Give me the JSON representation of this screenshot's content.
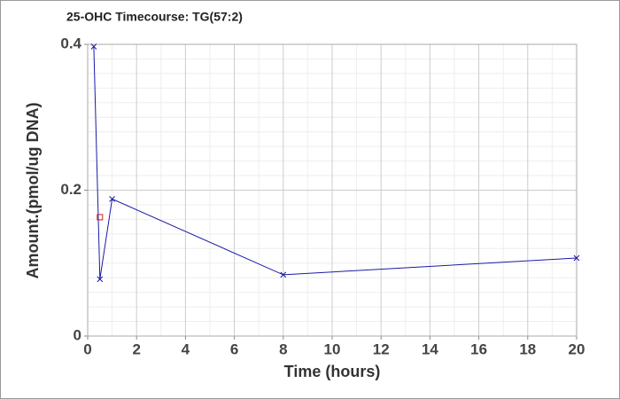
{
  "chart_data": {
    "type": "line",
    "title": "25-OHC Timecourse: TG(57:2)",
    "xlabel": "Time (hours)",
    "ylabel": "Amount.(pmol/ug DNA)",
    "series": [
      {
        "color": "#1a1aa8",
        "marker": "x",
        "x": [
          0.25,
          0.5,
          1,
          8,
          20
        ],
        "values": [
          0.397,
          0.078,
          0.188,
          0.084,
          0.107
        ]
      },
      {
        "color": "#cc2222",
        "marker": "square",
        "x": [
          0.5
        ],
        "values": [
          0.163
        ]
      }
    ],
    "xlim": [
      0,
      20
    ],
    "xticks": [
      0,
      2,
      4,
      6,
      8,
      10,
      12,
      14,
      16,
      18,
      20
    ],
    "ylim": [
      0,
      0.4
    ],
    "yticks": [
      0,
      0.2,
      0.4
    ],
    "grid": true
  }
}
